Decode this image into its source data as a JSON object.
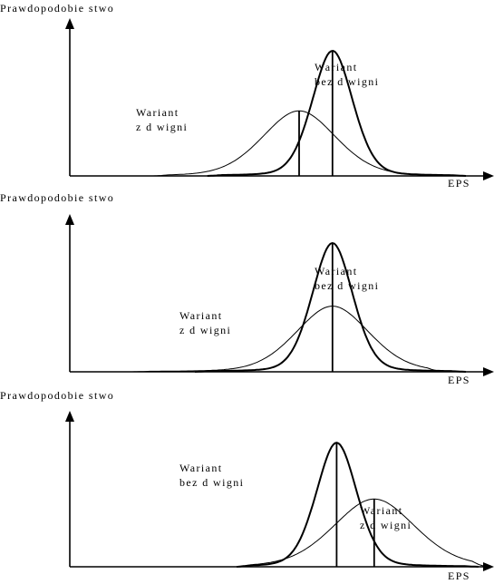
{
  "chart_data": [
    {
      "type": "line",
      "ylabel": "Prawdopodobie stwo",
      "xlabel": "EPS",
      "series": [
        {
          "name": "Wariant bez d wigni",
          "label_lines": [
            "Wariant",
            "bez d wigni"
          ],
          "mean": 0.63,
          "spread": 0.05,
          "peak": 1.0,
          "range": [
            0.33,
            0.95
          ]
        },
        {
          "name": "Wariant z d wigni",
          "label_lines": [
            "Wariant",
            "z d wigni"
          ],
          "mean": 0.55,
          "spread": 0.09,
          "peak": 0.52,
          "range": [
            0.2,
            0.9
          ]
        }
      ]
    },
    {
      "type": "line",
      "ylabel": "Prawdopodobie stwo",
      "xlabel": "EPS",
      "series": [
        {
          "name": "Wariant bez d wigni",
          "label_lines": [
            "Wariant",
            "bez d wigni"
          ],
          "mean": 0.63,
          "spread": 0.05,
          "peak": 1.0,
          "range": [
            0.3,
            0.95
          ]
        },
        {
          "name": "Wariant z d wigni",
          "label_lines": [
            "Wariant",
            "z d wigni"
          ],
          "mean": 0.63,
          "spread": 0.09,
          "peak": 0.51,
          "range": [
            0.15,
            0.9
          ]
        }
      ]
    },
    {
      "type": "line",
      "ylabel": "Prawdopodobie stwo",
      "xlabel": "EPS",
      "series": [
        {
          "name": "Wariant bez d wigni",
          "label_lines": [
            "Wariant",
            "bez d wigni"
          ],
          "mean": 0.64,
          "spread": 0.05,
          "peak": 0.97,
          "range": [
            0.4,
            0.98
          ]
        },
        {
          "name": "Wariant z d wigni",
          "label_lines": [
            "Wariant",
            "z d wigni"
          ],
          "mean": 0.73,
          "spread": 0.1,
          "peak": 0.53,
          "range": [
            0.4,
            1.0
          ]
        }
      ]
    }
  ]
}
